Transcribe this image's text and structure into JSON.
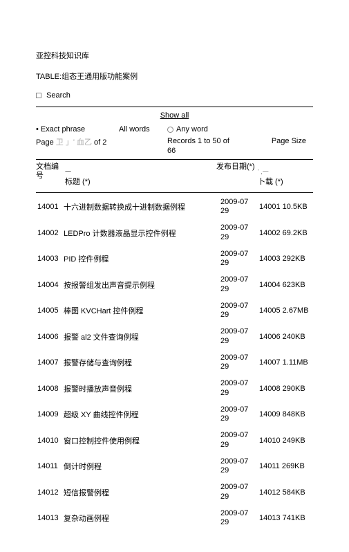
{
  "header": {
    "site_title": "亚控科技知识库",
    "table_label": "TABLE:组态王通用版功能案例",
    "search_label": "Search"
  },
  "controls": {
    "show_all": "Show all",
    "exact_phrase": "• Exact phrase",
    "all_words": "All words",
    "any_word": "Any word",
    "page_label_prefix": "Page",
    "page_grey": " 卫 」' 血乙 ",
    "page_label_suffix": "of 2",
    "records_label": "Records 1 to 50 of 66",
    "page_size_label": "Page Size"
  },
  "columns": {
    "id": "文档编号",
    "title": "标题 (*)",
    "date": "发布日期(*)",
    "download": "卜载 (*)",
    "arrow1": "一",
    "arrow2": "' ,一"
  },
  "rows": [
    {
      "id": "14001",
      "title": "十六进制数据转换成十进制数据例程",
      "date": "2009-07 29",
      "dl": "14001 10.5KB"
    },
    {
      "id": "14002",
      "title": "LEDPro 计数器液晶显示控件例程",
      "date": "2009-07 29",
      "dl": "14002 69.2KB"
    },
    {
      "id": "14003",
      "title": "PID 控件例程",
      "date": "2009-07 29",
      "dl": "14003 292KB"
    },
    {
      "id": "14004",
      "title": "按报警组发出声音提示例程",
      "date": "2009-07 29",
      "dl": "14004 623KB"
    },
    {
      "id": "14005",
      "title": "棒图 KVCHart 控件例程",
      "date": "2009-07 29",
      "dl": "14005 2.67MB"
    },
    {
      "id": "14006",
      "title": "报警 al2 文件查询例程",
      "date": "2009-07 29",
      "dl": "14006 240KB"
    },
    {
      "id": "14007",
      "title": "报警存储与查询例程",
      "date": "2009-07 29",
      "dl": "14007 1.11MB"
    },
    {
      "id": "14008",
      "title": "报警时播放声音例程",
      "date": "2009-07 29",
      "dl": "14008 290KB"
    },
    {
      "id": "14009",
      "title": "超级 XY 曲线控件例程",
      "date": "2009-07 29",
      "dl": "14009 848KB"
    },
    {
      "id": "14010",
      "title": "窗口控制控件使用例程",
      "date": "2009-07 29",
      "dl": "14010 249KB"
    },
    {
      "id": "14011",
      "title": "倒计时例程",
      "date": "2009-07 29",
      "dl": "14011 269KB"
    },
    {
      "id": "14012",
      "title": "短信报警例程",
      "date": "2009-07 29",
      "dl": "14012 584KB"
    },
    {
      "id": "14013",
      "title": "复杂动画例程",
      "date": "2009-07 29",
      "dl": "14013 741KB"
    }
  ]
}
